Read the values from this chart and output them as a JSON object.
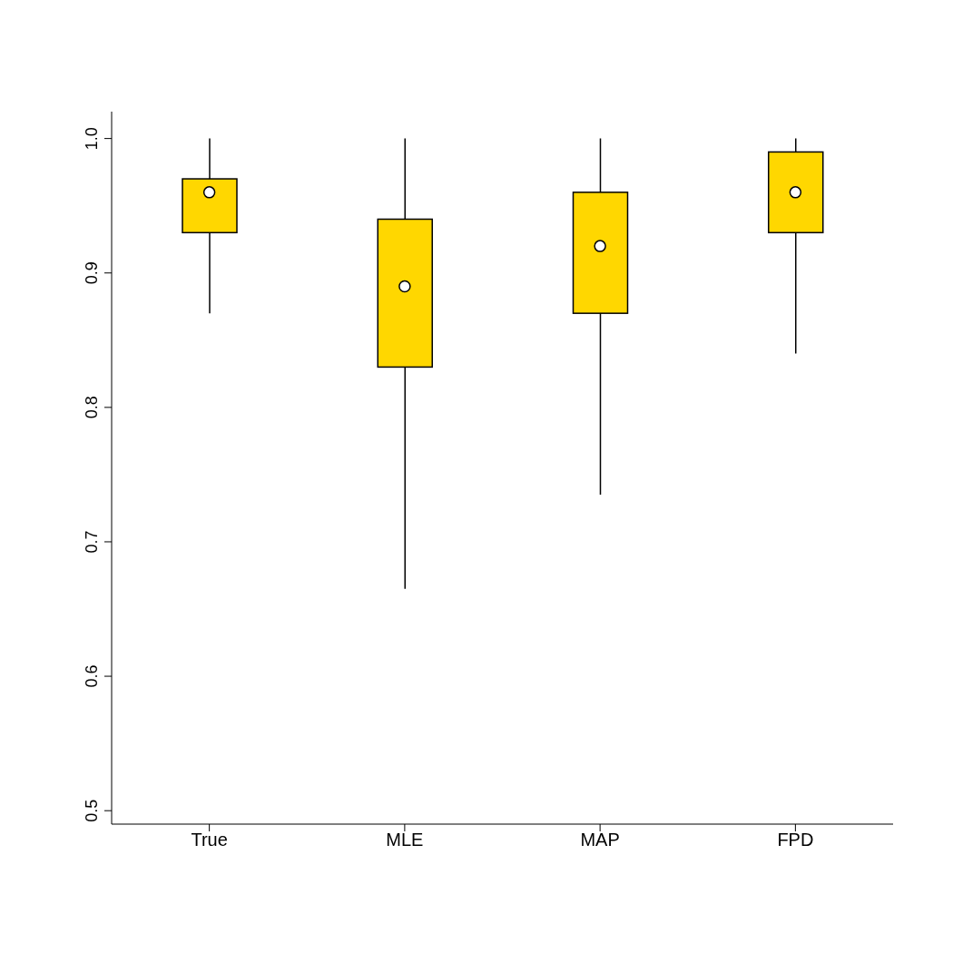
{
  "chart_data": {
    "type": "box",
    "categories": [
      "True",
      "MLE",
      "MAP",
      "FPD"
    ],
    "color": "#ffd700",
    "boxes": [
      {
        "low": 0.87,
        "q1": 0.93,
        "median": 0.96,
        "q3": 0.97,
        "high": 1.0
      },
      {
        "low": 0.665,
        "q1": 0.83,
        "median": 0.89,
        "q3": 0.94,
        "high": 1.0
      },
      {
        "low": 0.735,
        "q1": 0.87,
        "median": 0.92,
        "q3": 0.96,
        "high": 1.0
      },
      {
        "low": 0.84,
        "q1": 0.93,
        "median": 0.96,
        "q3": 0.99,
        "high": 1.0
      }
    ],
    "ylim": [
      0.49,
      1.02
    ],
    "yticks": [
      0.5,
      0.6,
      0.7,
      0.8,
      0.9,
      {
        "value": 1,
        "label": "1.0"
      }
    ]
  }
}
